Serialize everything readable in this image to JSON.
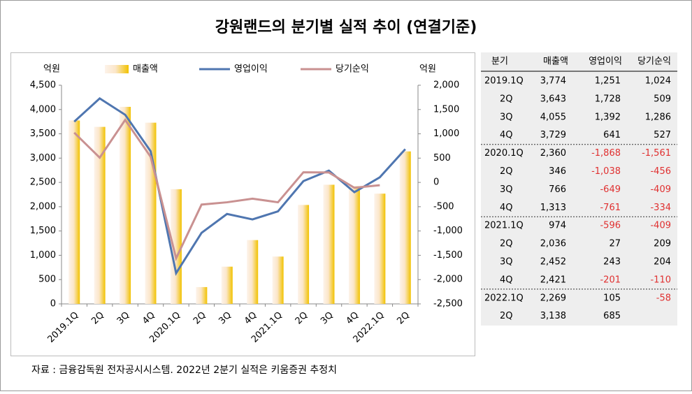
{
  "chart_data": {
    "type": "bar_line",
    "title": "강원랜드의 분기별 실적 추이 (연결기준)",
    "ylabel": "억원",
    "y2label": "억원",
    "categories": [
      "2019.1Q",
      "2Q",
      "3Q",
      "4Q",
      "2020.1Q",
      "2Q",
      "3Q",
      "4Q",
      "2021.1Q",
      "2Q",
      "3Q",
      "4Q",
      "2022.1Q",
      "2Q"
    ],
    "series": [
      {
        "name": "매출액",
        "type": "bar",
        "color": "#f2c200",
        "values": [
          3774,
          3643,
          4055,
          3729,
          2360,
          346,
          766,
          1313,
          974,
          2036,
          2452,
          2421,
          2269,
          3138
        ]
      },
      {
        "name": "영업이익",
        "type": "line",
        "axis": "y2",
        "color": "#4f76b0",
        "values": [
          1251,
          1728,
          1392,
          641,
          -1868,
          -1038,
          -649,
          -761,
          -596,
          27,
          243,
          -201,
          105,
          685
        ]
      },
      {
        "name": "당기순익",
        "type": "line",
        "axis": "y2",
        "color": "#c99191",
        "values": [
          1024,
          509,
          1286,
          527,
          -1561,
          -456,
          -409,
          -334,
          -409,
          209,
          204,
          -110,
          -58,
          null
        ]
      }
    ],
    "ylim": [
      0,
      4500
    ],
    "yticks": [
      0,
      500,
      {
        "value": 1000,
        "label": "1,000"
      },
      {
        "value": 1500,
        "label": "1,500"
      },
      {
        "value": 2000,
        "label": "2,000"
      },
      {
        "value": 2500,
        "label": "2,500"
      },
      {
        "value": 3000,
        "label": "3,000"
      },
      {
        "value": 3500,
        "label": "3,500"
      },
      {
        "value": 4000,
        "label": "4,000"
      },
      {
        "value": 4500,
        "label": "4,500"
      }
    ],
    "y2lim": [
      -2500,
      2000
    ],
    "y2ticks": [
      {
        "value": -2500,
        "label": "-2,500"
      },
      {
        "value": -2000,
        "label": "-2,000"
      },
      {
        "value": -1500,
        "label": "-1,500"
      },
      {
        "value": -1000,
        "label": "-1,000"
      },
      -500,
      0,
      500,
      {
        "value": 1000,
        "label": "1,000"
      },
      {
        "value": 1500,
        "label": "1,500"
      },
      {
        "value": 2000,
        "label": "2,000"
      }
    ],
    "source": "자료 : 금융감독원 전자공시시스템. 2022년 2분기 실적은 키움증권 추정치"
  },
  "table": {
    "header": [
      "분기",
      "매출액",
      "영업이익",
      "당기순익"
    ],
    "rows": [
      [
        "2019.1Q",
        "3,774",
        "1,251",
        "1,024"
      ],
      [
        "2Q",
        "3,643",
        "1,728",
        "509"
      ],
      [
        "3Q",
        "4,055",
        "1,392",
        "1,286"
      ],
      [
        "4Q",
        "3,729",
        "641",
        "527"
      ],
      [
        "2020.1Q",
        "2,360",
        "-1,868",
        "-1,561"
      ],
      [
        "2Q",
        "346",
        "-1,038",
        "-456"
      ],
      [
        "3Q",
        "766",
        "-649",
        "-409"
      ],
      [
        "4Q",
        "1,313",
        "-761",
        "-334"
      ],
      [
        "2021.1Q",
        "974",
        "-596",
        "-409"
      ],
      [
        "2Q",
        "2,036",
        "27",
        "209"
      ],
      [
        "3Q",
        "2,452",
        "243",
        "204"
      ],
      [
        "4Q",
        "2,421",
        "-201",
        "-110"
      ],
      [
        "2022.1Q",
        "2,269",
        "105",
        "-58"
      ],
      [
        "2Q",
        "3,138",
        "685"
      ]
    ]
  }
}
